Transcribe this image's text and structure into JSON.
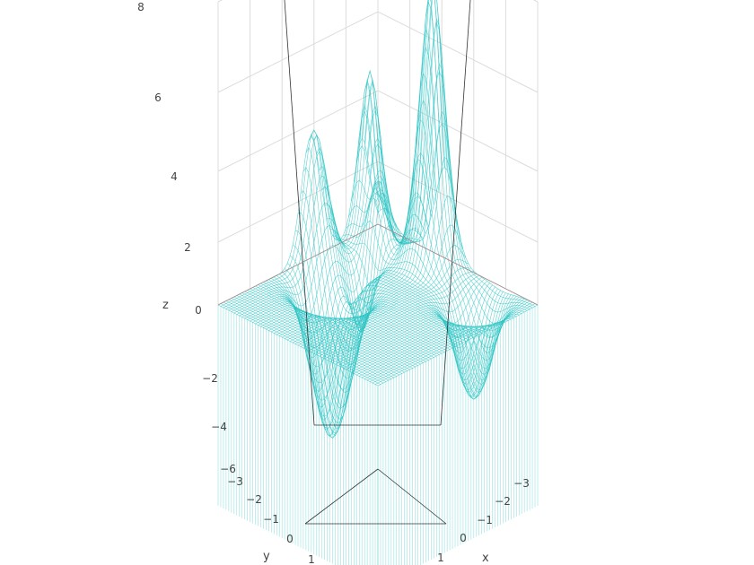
{
  "chart_data": {
    "type": "surface-wireframe-3d",
    "x_label": "x",
    "y_label": "y",
    "z_label": "z",
    "x_ticks": [
      "−3",
      "−2",
      "−1",
      "0",
      "1"
    ],
    "y_ticks": [
      "−3",
      "−2",
      "−1",
      "0",
      "1"
    ],
    "z_ticks": [
      "8",
      "6",
      "4",
      "2",
      "0",
      "−2",
      "−4",
      "−6"
    ],
    "z_range": [
      -7,
      8
    ],
    "surface_peaks_approx": [
      {
        "z": 7.6
      },
      {
        "z": 4.8
      },
      {
        "z": 3.9
      }
    ],
    "surface_minimum_approx": -5.5,
    "grid": true,
    "line_color": "#2ec4c4",
    "grid_color": "#dcdcdc",
    "edge_color": "#333333"
  }
}
